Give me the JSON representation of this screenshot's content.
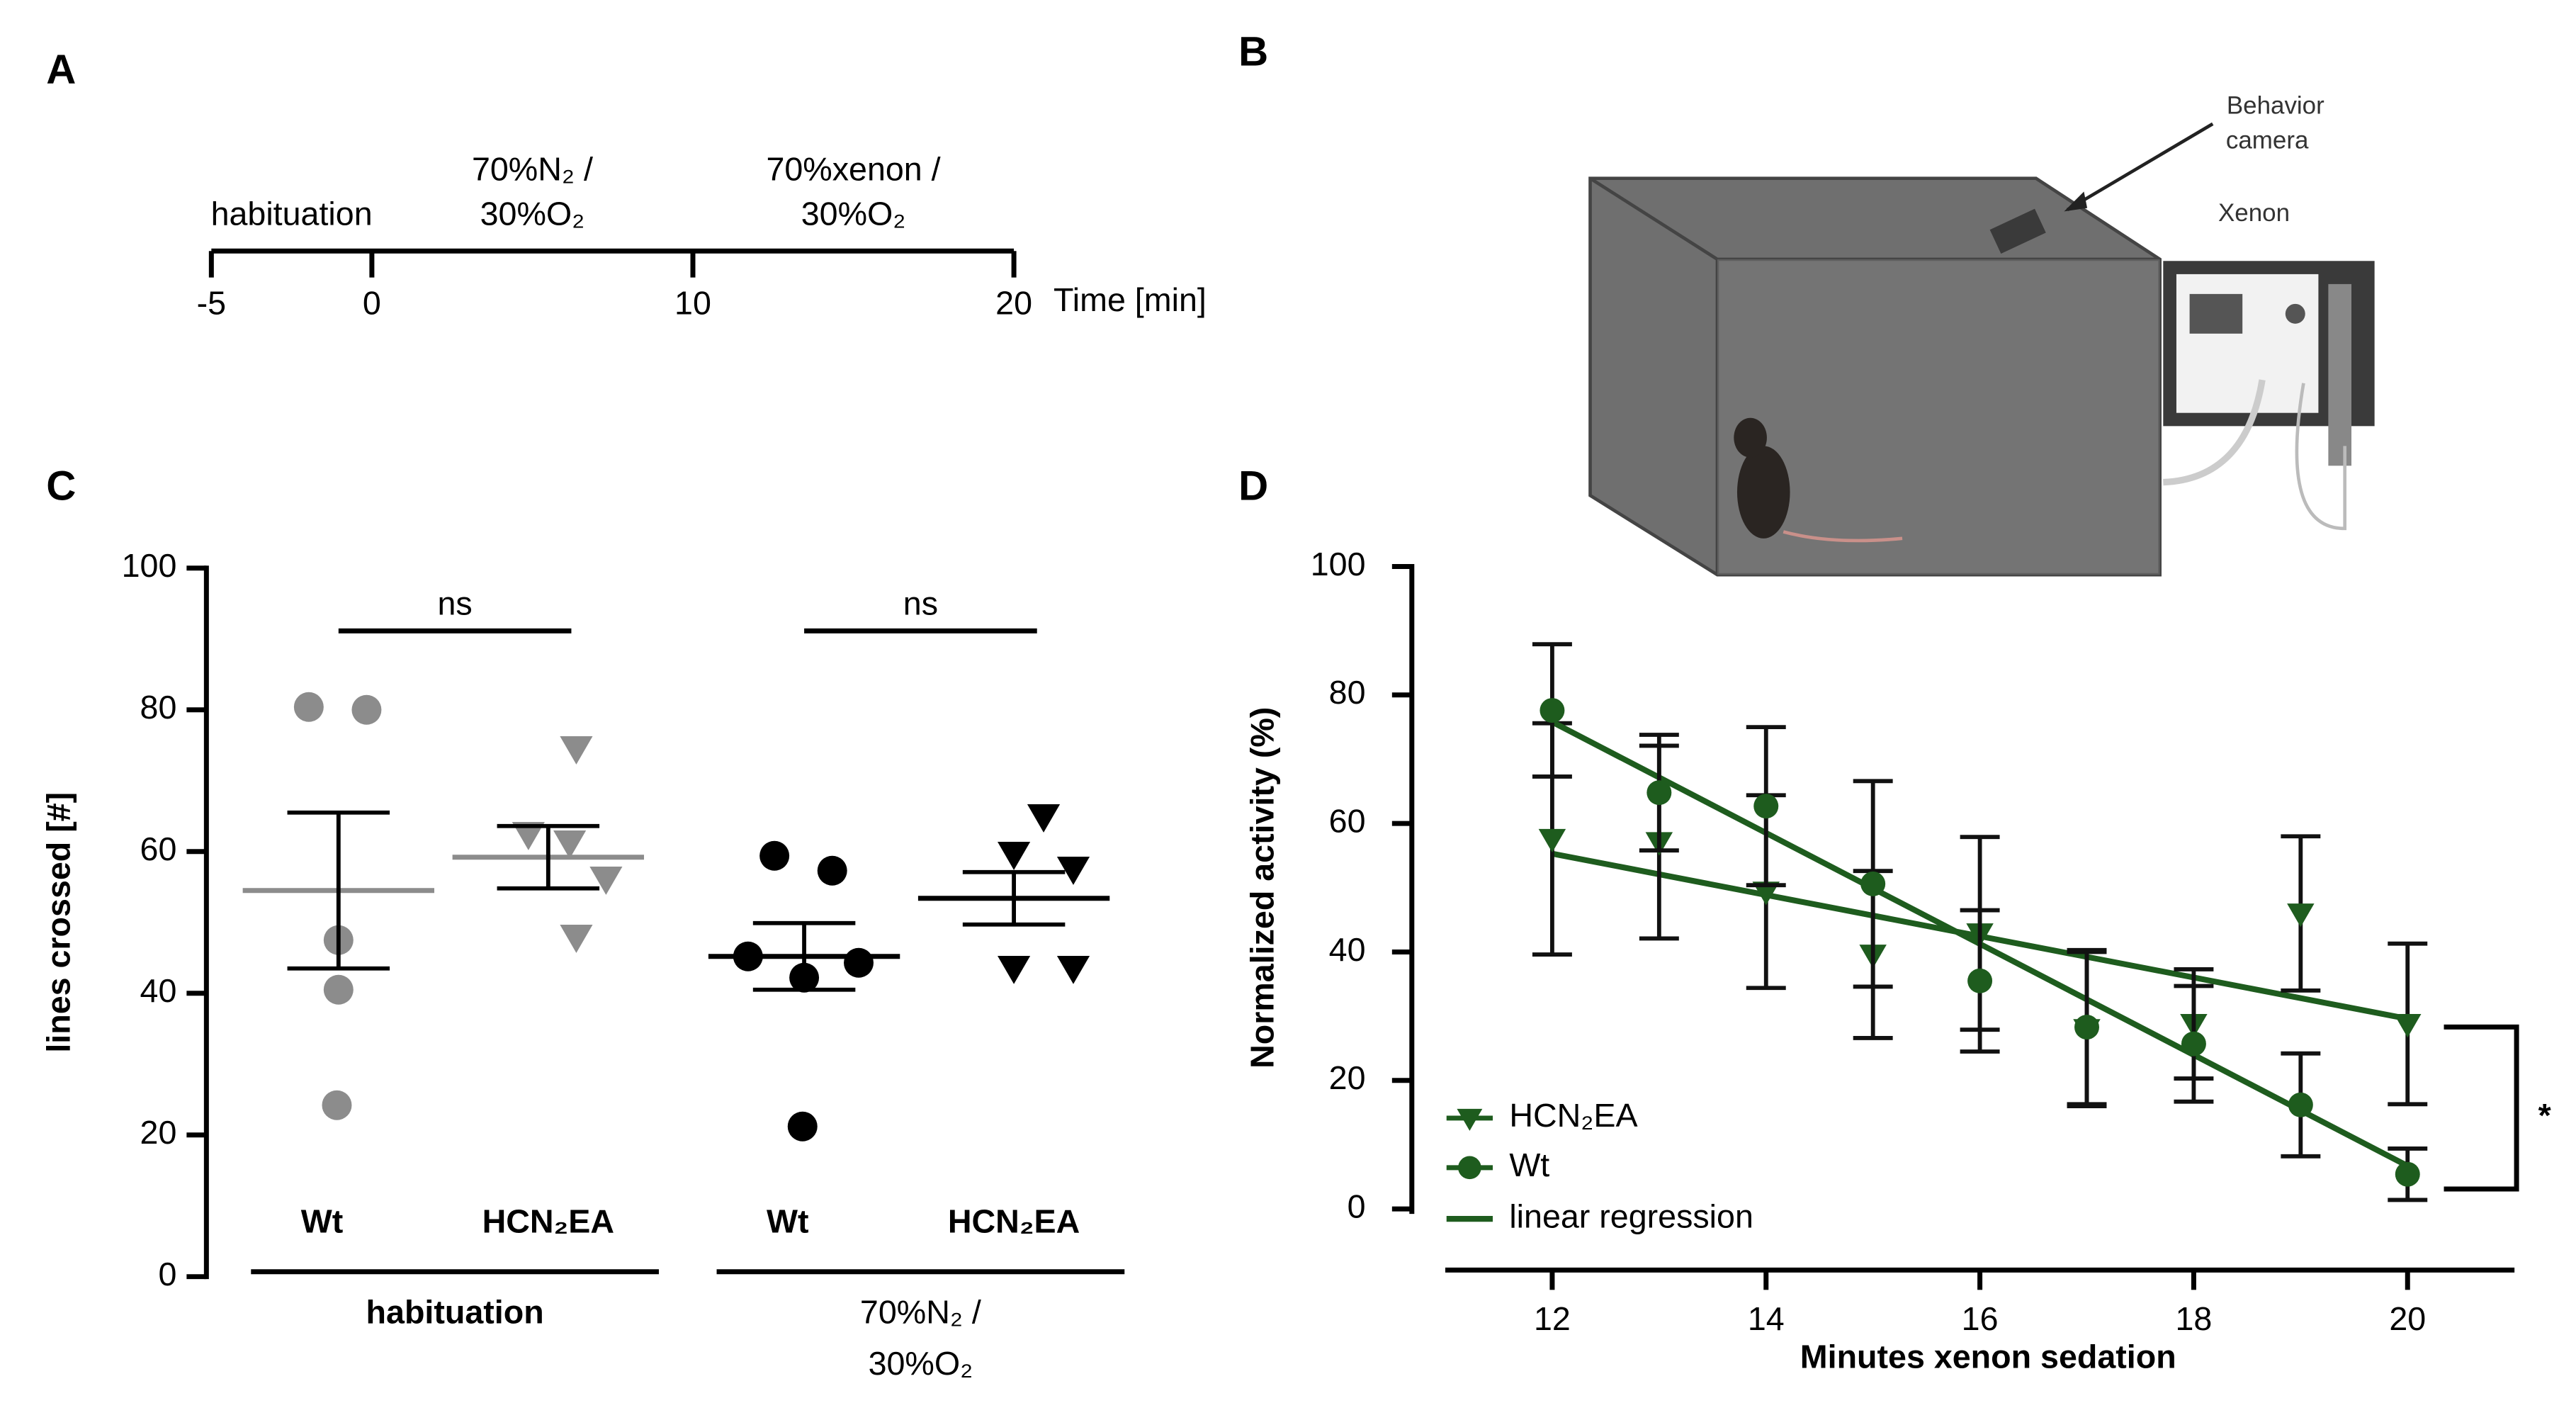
{
  "panel_labels": [
    "A",
    "B",
    "C",
    "D"
  ],
  "illustration": {
    "camera_label": [
      "Behavior",
      "camera"
    ],
    "device_label": "Xenon"
  },
  "chart_data": [
    {
      "type": "timeline",
      "xlabel": "Time [min]",
      "xlim": [
        -5,
        20
      ],
      "xticks": [
        -5,
        0,
        10,
        20
      ],
      "phases": [
        {
          "label": [
            "habituation"
          ],
          "start": -5,
          "end": 0,
          "color": "#8c8c8c"
        },
        {
          "label": [
            "70%N₂ /",
            "30%O₂"
          ],
          "start": 0,
          "end": 10,
          "color": "#000000"
        },
        {
          "label": [
            "70%xenon /",
            "30%O₂"
          ],
          "start": 10,
          "end": 20,
          "color": "#2a7a2a"
        }
      ]
    },
    {
      "type": "dot",
      "ylabel": "lines crossed [#]",
      "ylim": [
        0,
        100
      ],
      "yticks": [
        0,
        20,
        40,
        60,
        80,
        100
      ],
      "groups": [
        {
          "name": "Wt",
          "condition": 0,
          "marker": "circle",
          "color": "#8c8c8c",
          "values": [
            80.4,
            80,
            47.5,
            40.5,
            24.2
          ],
          "mean": 54.5,
          "sem": 11
        },
        {
          "name": "HCN₂EA",
          "condition": 0,
          "marker": "triangle",
          "color": "#8c8c8c",
          "values": [
            74.6,
            62.5,
            61.3,
            56.2,
            48
          ],
          "mean": 59.2,
          "sem": 4.4
        },
        {
          "name": "Wt",
          "condition": 1,
          "marker": "circle",
          "color": "#000000",
          "values": [
            59.4,
            57.3,
            45.2,
            44.3,
            42.2,
            21.2
          ],
          "mean": 45.2,
          "sem": 4.7
        },
        {
          "name": "HCN₂EA",
          "condition": 1,
          "marker": "triangle",
          "color": "#000000",
          "values": [
            65,
            59.7,
            57.6,
            43.6,
            43.6
          ],
          "mean": 53.4,
          "sem": 3.7
        }
      ],
      "conditions": [
        {
          "label": [
            "habituation"
          ],
          "color": "#8c8c8c",
          "bold": true
        },
        {
          "label": [
            "70%N₂ /",
            "30%O₂"
          ],
          "color": "#000000",
          "bold": false
        }
      ],
      "annotations": [
        {
          "text": "ns",
          "groups": [
            0,
            1
          ]
        },
        {
          "text": "ns",
          "groups": [
            2,
            3
          ]
        }
      ]
    },
    {
      "type": "line",
      "xlabel": "Minutes xenon sedation",
      "ylabel": "Normalized activity (%)",
      "xlim": [
        11,
        21
      ],
      "xticks": [
        12,
        14,
        16,
        18,
        20
      ],
      "ylim": [
        0,
        100
      ],
      "yticks": [
        0,
        20,
        40,
        60,
        80,
        100
      ],
      "x": [
        12,
        13,
        14,
        15,
        16,
        17,
        18,
        19,
        20
      ],
      "series": [
        {
          "name": "HCN₂EA",
          "marker": "triangle",
          "color": "#1e5c1e",
          "values": [
            57.6,
            57.1,
            49.4,
            39.6,
            42.9,
            28,
            28.8,
            46,
            28.8
          ],
          "errors": [
            18,
            15,
            15,
            13,
            15,
            12,
            8.5,
            12,
            12.5
          ],
          "fit": [
            55.3,
            29.6
          ]
        },
        {
          "name": "Wt",
          "marker": "circle",
          "color": "#1e5c1e",
          "values": [
            77.6,
            64.8,
            62.7,
            50.6,
            35.5,
            28.3,
            25.7,
            16.2,
            5.4
          ],
          "errors": [
            10.3,
            9,
            12.3,
            16,
            11,
            12,
            9,
            8,
            4
          ],
          "fit": [
            75.8,
            6.7
          ]
        }
      ],
      "fit_x": [
        12,
        20
      ],
      "fit_label": "linear regression",
      "annotations": [
        {
          "text": "*"
        }
      ]
    }
  ]
}
